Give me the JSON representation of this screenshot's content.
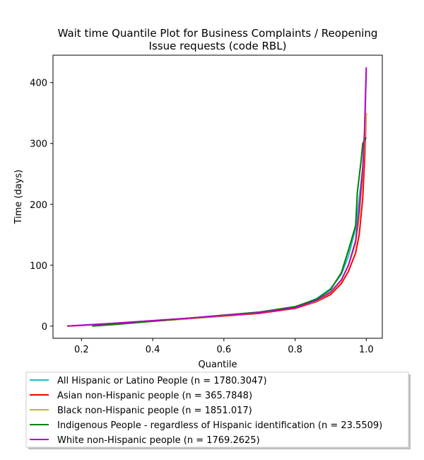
{
  "chart_data": {
    "type": "line",
    "title": "Wait time Quantile Plot for Business Complaints / Reopening\nIssue  requests (code RBL)",
    "xlabel": "Quantile",
    "ylabel": "Time (days)",
    "xlim": [
      0.12,
      1.045
    ],
    "ylim": [
      -20,
      445
    ],
    "xticks": [
      0.2,
      0.4,
      0.6,
      0.8,
      1.0
    ],
    "xtick_labels": [
      "0.2",
      "0.4",
      "0.6",
      "0.8",
      "1.0"
    ],
    "yticks": [
      0,
      100,
      200,
      300,
      400
    ],
    "ytick_labels": [
      "0",
      "100",
      "200",
      "300",
      "400"
    ],
    "legend_position": "bottom-outside",
    "series": [
      {
        "name": "All Hispanic or Latino People (n = 1780.3047)",
        "color": "#17becf",
        "x": [
          0.16,
          0.3,
          0.5,
          0.7,
          0.8,
          0.86,
          0.9,
          0.93,
          0.95,
          0.97,
          0.98,
          0.99,
          0.995,
          1.0
        ],
        "y": [
          0,
          5,
          13,
          23,
          31,
          45,
          62,
          85,
          115,
          160,
          210,
          260,
          300,
          420
        ]
      },
      {
        "name": "Asian non-Hispanic people (n = 365.7848)",
        "color": "#ff0000",
        "x": [
          0.16,
          0.3,
          0.5,
          0.7,
          0.8,
          0.86,
          0.9,
          0.93,
          0.95,
          0.97,
          0.98,
          0.99,
          0.995,
          1.0
        ],
        "y": [
          0,
          4,
          12,
          21,
          29,
          40,
          52,
          70,
          90,
          120,
          150,
          210,
          270,
          350
        ]
      },
      {
        "name": "Black non-Hispanic people (n = 1851.017)",
        "color": "#bcbd22",
        "x": [
          0.16,
          0.3,
          0.5,
          0.7,
          0.8,
          0.86,
          0.9,
          0.93,
          0.95,
          0.97,
          0.98,
          0.99,
          0.995,
          1.0
        ],
        "y": [
          0,
          4,
          12,
          22,
          30,
          41,
          55,
          75,
          100,
          135,
          180,
          250,
          300,
          350
        ]
      },
      {
        "name": "Indigenous People - regardless of Hispanic identification (n = 23.5509)",
        "color": "#008000",
        "x": [
          0.23,
          0.3,
          0.5,
          0.7,
          0.8,
          0.86,
          0.9,
          0.93,
          0.95,
          0.97,
          0.975,
          0.985,
          0.99,
          1.0
        ],
        "y": [
          0,
          3,
          13,
          23,
          32,
          44,
          60,
          88,
          125,
          165,
          220,
          270,
          300,
          310
        ]
      },
      {
        "name": "White non-Hispanic people (n = 1769.2625)",
        "color": "#bf00bf",
        "x": [
          0.16,
          0.3,
          0.5,
          0.7,
          0.8,
          0.86,
          0.9,
          0.93,
          0.95,
          0.97,
          0.98,
          0.99,
          0.995,
          1.0
        ],
        "y": [
          0,
          5,
          13,
          22,
          30,
          42,
          56,
          76,
          100,
          140,
          190,
          260,
          320,
          425
        ]
      }
    ]
  }
}
